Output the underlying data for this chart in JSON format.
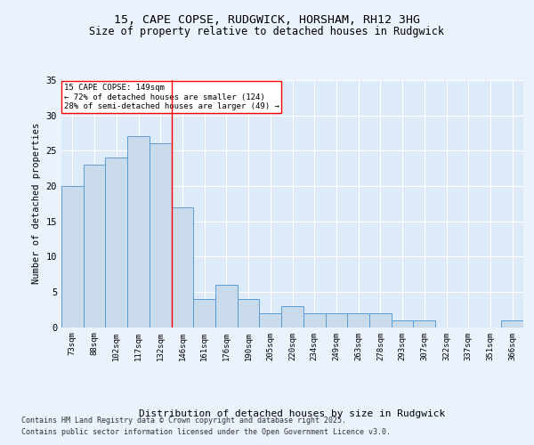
{
  "title1": "15, CAPE COPSE, RUDGWICK, HORSHAM, RH12 3HG",
  "title2": "Size of property relative to detached houses in Rudgwick",
  "xlabel": "Distribution of detached houses by size in Rudgwick",
  "ylabel": "Number of detached properties",
  "bins": [
    "73sqm",
    "88sqm",
    "102sqm",
    "117sqm",
    "132sqm",
    "146sqm",
    "161sqm",
    "176sqm",
    "190sqm",
    "205sqm",
    "220sqm",
    "234sqm",
    "249sqm",
    "263sqm",
    "278sqm",
    "293sqm",
    "307sqm",
    "322sqm",
    "337sqm",
    "351sqm",
    "366sqm"
  ],
  "values": [
    20,
    23,
    24,
    27,
    26,
    17,
    4,
    6,
    4,
    2,
    3,
    2,
    2,
    2,
    2,
    1,
    1,
    0,
    0,
    0,
    1
  ],
  "bar_color": "#c9daea",
  "bar_edge_color": "#5b9bd5",
  "red_line_index": 5,
  "annotation_title": "15 CAPE COPSE: 149sqm",
  "annotation_line1": "← 72% of detached houses are smaller (124)",
  "annotation_line2": "28% of semi-detached houses are larger (49) →",
  "footer1": "Contains HM Land Registry data © Crown copyright and database right 2025.",
  "footer2": "Contains public sector information licensed under the Open Government Licence v3.0.",
  "bg_color": "#eaf2fb",
  "plot_bg_color": "#ddeaf7",
  "ylim": [
    0,
    35
  ],
  "yticks": [
    0,
    5,
    10,
    15,
    20,
    25,
    30,
    35
  ],
  "grid_color": "#ffffff",
  "title_fontsize": 9.5,
  "subtitle_fontsize": 8.5
}
